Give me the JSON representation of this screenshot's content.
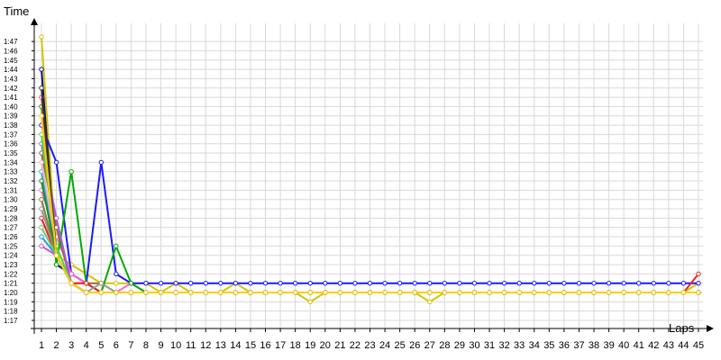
{
  "chart_data": {
    "type": "line",
    "xlabel": "Laps",
    "ylabel": "Time",
    "x": [
      1,
      2,
      3,
      4,
      5,
      6,
      7,
      8,
      9,
      10,
      11,
      12,
      13,
      14,
      15,
      16,
      17,
      18,
      19,
      20,
      21,
      22,
      23,
      24,
      25,
      26,
      27,
      28,
      29,
      30,
      31,
      32,
      33,
      34,
      35,
      36,
      37,
      38,
      39,
      40,
      41,
      42,
      43,
      44,
      45
    ],
    "x_tick_labels": [
      "1",
      "2",
      "3",
      "4",
      "5",
      "6",
      "7",
      "8",
      "9",
      "10",
      "11",
      "12",
      "13",
      "14",
      "15",
      "16",
      "17",
      "18",
      "19",
      "20",
      "21",
      "22",
      "23",
      "24",
      "25",
      "26",
      "27",
      "28",
      "29",
      "30",
      "31",
      "32",
      "33",
      "34",
      "35",
      "36",
      "37",
      "38",
      "39",
      "40",
      "41",
      "42",
      "43",
      "44",
      "45"
    ],
    "y_tick_labels": [
      "1:17",
      "1:18",
      "1:19",
      "1:20",
      "1:21",
      "1:22",
      "1:23",
      "1:24",
      "1:25",
      "1:26",
      "1:27",
      "1:28",
      "1:29",
      "1:30",
      "1:31",
      "1:32",
      "1:33",
      "1:34",
      "1:35",
      "1:36",
      "1:37",
      "1:38",
      "1:39",
      "1:40",
      "1:41",
      "1:42",
      "1:43",
      "1:44",
      "1:45",
      "1:46",
      "1:47"
    ],
    "ylim": [
      77,
      110
    ],
    "y_unit": "seconds (m:ss)",
    "grid": true,
    "legend": "none",
    "series": [
      {
        "color": "#d4c400",
        "values": [
          107.5,
          84,
          83,
          82,
          81,
          81,
          81,
          81,
          80,
          81,
          80,
          80,
          80,
          81,
          80,
          80,
          80,
          80,
          79,
          80,
          80,
          80,
          80,
          80,
          80,
          80,
          79,
          80,
          80,
          80,
          80,
          80,
          80,
          80,
          80,
          80,
          80,
          80,
          80,
          80,
          80,
          80,
          80,
          80,
          81
        ]
      },
      {
        "color": "#0a0a8a",
        "values": [
          104,
          83,
          82,
          81,
          80,
          80,
          80,
          80,
          80,
          80,
          80,
          80,
          80,
          80,
          80,
          80,
          80,
          80,
          80,
          80,
          80,
          80,
          80,
          80,
          80,
          80,
          80,
          80,
          80,
          80,
          80,
          80,
          80,
          80,
          80,
          80,
          80,
          80,
          80,
          80,
          80,
          80,
          80,
          80,
          80
        ]
      },
      {
        "color": "#1a1aff",
        "values": [
          98,
          94,
          82,
          81,
          94,
          82,
          81,
          81,
          81,
          81,
          81,
          81,
          81,
          81,
          81,
          81,
          81,
          81,
          81,
          81,
          81,
          81,
          81,
          81,
          81,
          81,
          81,
          81,
          81,
          81,
          81,
          81,
          81,
          81,
          81,
          81,
          81,
          81,
          81,
          81,
          81,
          81,
          81,
          81,
          81
        ]
      },
      {
        "color": "#ff66cc",
        "values": [
          91,
          86,
          82,
          81,
          80,
          80,
          81,
          80,
          80,
          80,
          80,
          80,
          80,
          80,
          80,
          80,
          80,
          80,
          80,
          80,
          80,
          80,
          80,
          80,
          80,
          80,
          80,
          80,
          80,
          80,
          80,
          80,
          80,
          80,
          80,
          80,
          80,
          80,
          80,
          80,
          80,
          80,
          80,
          80,
          80
        ]
      },
      {
        "color": "#996633",
        "values": [
          95,
          87,
          81,
          81,
          81,
          80,
          80,
          80,
          80,
          80,
          80,
          80,
          80,
          80,
          80,
          80,
          80,
          80,
          80,
          80,
          80,
          80,
          80,
          80,
          80,
          80,
          80,
          80,
          80,
          80,
          80,
          80,
          80,
          80,
          80,
          80,
          80,
          80,
          80,
          80,
          80,
          80,
          80,
          80,
          80
        ]
      },
      {
        "color": "#00aa00",
        "values": [
          100,
          83,
          93,
          81,
          80,
          85,
          81,
          80,
          80,
          80,
          80,
          80,
          80,
          80,
          80,
          80,
          80,
          80,
          80,
          80,
          80,
          80,
          80,
          80,
          80,
          80,
          80,
          80,
          80,
          80,
          80,
          80,
          80,
          80,
          80,
          80,
          80,
          80,
          80,
          80,
          80,
          80,
          80,
          80,
          80
        ]
      },
      {
        "color": "#ee2222",
        "values": [
          88,
          84,
          81,
          81,
          80,
          80,
          80,
          80,
          80,
          80,
          80,
          80,
          80,
          80,
          80,
          80,
          80,
          80,
          80,
          80,
          80,
          80,
          80,
          80,
          80,
          80,
          80,
          80,
          80,
          80,
          80,
          80,
          80,
          80,
          80,
          80,
          80,
          80,
          80,
          80,
          80,
          80,
          80,
          80,
          82
        ]
      },
      {
        "color": "#aa55ee",
        "values": [
          96,
          88,
          81,
          80,
          80,
          80,
          80,
          80,
          80,
          80,
          80,
          80,
          80,
          80,
          80,
          80,
          80,
          80,
          80,
          80,
          80,
          80,
          80,
          80,
          80,
          80,
          80,
          80,
          80,
          80,
          80,
          80,
          80,
          80,
          80,
          80,
          80,
          80,
          80,
          80,
          80,
          80,
          80,
          80,
          80
        ]
      },
      {
        "color": "#ff4444",
        "values": [
          101,
          84,
          81,
          80,
          80,
          80,
          80,
          80,
          80,
          80,
          80,
          80,
          80,
          80,
          80,
          80,
          80,
          80,
          80,
          80,
          80,
          80,
          80,
          80,
          80,
          80,
          80,
          80,
          80,
          80,
          80,
          80,
          80,
          80,
          80,
          80,
          80,
          80,
          80,
          80,
          80,
          80,
          80,
          80,
          80
        ]
      },
      {
        "color": "#11bbcc",
        "values": [
          93,
          84,
          81,
          80,
          80,
          80,
          80,
          80,
          80,
          80,
          80,
          80,
          80,
          80,
          80,
          80,
          80,
          80,
          80,
          80,
          80,
          80,
          80,
          80,
          80,
          80,
          80,
          80,
          80,
          80,
          80,
          80,
          80,
          80,
          80,
          80,
          80,
          80,
          80,
          80,
          80,
          80,
          80,
          80,
          80
        ]
      },
      {
        "color": "#999999",
        "values": [
          89,
          84,
          81,
          80,
          81,
          80,
          80,
          80,
          80,
          80,
          80,
          80,
          80,
          80,
          80,
          80,
          80,
          80,
          80,
          80,
          80,
          80,
          80,
          80,
          80,
          80,
          80,
          80,
          80,
          80,
          80,
          80,
          80,
          80,
          80,
          80,
          80,
          80,
          80,
          80,
          80,
          80,
          80,
          80,
          80
        ]
      },
      {
        "color": "#228822",
        "values": [
          92,
          84,
          81,
          80,
          80,
          80,
          80,
          80,
          80,
          80,
          80,
          80,
          80,
          80,
          80,
          80,
          80,
          80,
          80,
          80,
          80,
          80,
          80,
          80,
          80,
          80,
          80,
          80,
          80,
          80,
          80,
          80,
          80,
          80,
          80,
          80,
          80,
          80,
          80,
          80,
          80,
          80,
          80,
          80,
          80
        ]
      },
      {
        "color": "#808040",
        "values": [
          90,
          84,
          81,
          80,
          80,
          80,
          80,
          80,
          80,
          80,
          80,
          80,
          80,
          80,
          80,
          80,
          80,
          80,
          80,
          80,
          80,
          80,
          80,
          80,
          80,
          80,
          80,
          80,
          80,
          80,
          80,
          80,
          80,
          80,
          80,
          80,
          80,
          80,
          80,
          80,
          80,
          80,
          80,
          80,
          80
        ]
      },
      {
        "color": "#ffaacc",
        "values": [
          94,
          85,
          81,
          80,
          80,
          80,
          80,
          80,
          80,
          80,
          80,
          80,
          80,
          80,
          80,
          80,
          80,
          80,
          80,
          80,
          80,
          80,
          80,
          80,
          80,
          80,
          80,
          80,
          80,
          80,
          80,
          80,
          80,
          80,
          80,
          80,
          80,
          80,
          80,
          80,
          80,
          80,
          80,
          80,
          80
        ]
      },
      {
        "color": "#44dd44",
        "values": [
          97,
          85,
          81,
          80,
          80,
          80,
          80,
          80,
          80,
          80,
          80,
          80,
          80,
          80,
          80,
          80,
          80,
          80,
          80,
          80,
          80,
          80,
          80,
          80,
          80,
          80,
          80,
          80,
          80,
          80,
          80,
          80,
          80,
          80,
          80,
          80,
          80,
          80,
          80,
          80,
          80,
          80,
          80,
          80,
          80
        ]
      },
      {
        "color": "#333333",
        "values": [
          102,
          84,
          81,
          80,
          80,
          80,
          80,
          80,
          80,
          80,
          80,
          80,
          80,
          80,
          80,
          80,
          80,
          80,
          80,
          80,
          80,
          80,
          80,
          80,
          80,
          80,
          80,
          80,
          80,
          80,
          80,
          80,
          80,
          80,
          80,
          80,
          80,
          80,
          80,
          80,
          80,
          80,
          80,
          80,
          80
        ]
      },
      {
        "color": "#2299ee",
        "values": [
          86,
          84,
          81,
          80,
          80,
          80,
          80,
          80,
          80,
          80,
          80,
          80,
          80,
          80,
          80,
          80,
          80,
          80,
          80,
          80,
          80,
          80,
          80,
          80,
          80,
          80,
          80,
          80,
          80,
          80,
          80,
          80,
          80,
          80,
          80,
          80,
          80,
          80,
          80,
          80,
          80,
          80,
          80,
          80,
          80
        ]
      },
      {
        "color": "#cc55cc",
        "values": [
          85,
          84,
          81,
          80,
          80,
          80,
          80,
          80,
          80,
          80,
          80,
          80,
          80,
          80,
          80,
          80,
          80,
          80,
          80,
          80,
          80,
          80,
          80,
          80,
          80,
          80,
          80,
          80,
          80,
          80,
          80,
          80,
          80,
          80,
          80,
          80,
          80,
          80,
          80,
          80,
          80,
          80,
          80,
          80,
          80
        ]
      },
      {
        "color": "#66cc66",
        "values": [
          87,
          84,
          81,
          80,
          80,
          80,
          80,
          80,
          80,
          80,
          80,
          80,
          80,
          80,
          80,
          80,
          80,
          80,
          80,
          80,
          80,
          80,
          80,
          80,
          80,
          80,
          80,
          80,
          80,
          80,
          80,
          80,
          80,
          80,
          80,
          80,
          80,
          80,
          80,
          80,
          80,
          80,
          80,
          80,
          80
        ]
      },
      {
        "color": "#ffcc00",
        "values": [
          99,
          84,
          81,
          80,
          80,
          80,
          80,
          80,
          80,
          80,
          80,
          80,
          80,
          80,
          80,
          80,
          80,
          80,
          80,
          80,
          80,
          80,
          80,
          80,
          80,
          80,
          80,
          80,
          80,
          80,
          80,
          80,
          80,
          80,
          80,
          80,
          80,
          80,
          80,
          80,
          80,
          80,
          80,
          80,
          80
        ]
      }
    ]
  }
}
